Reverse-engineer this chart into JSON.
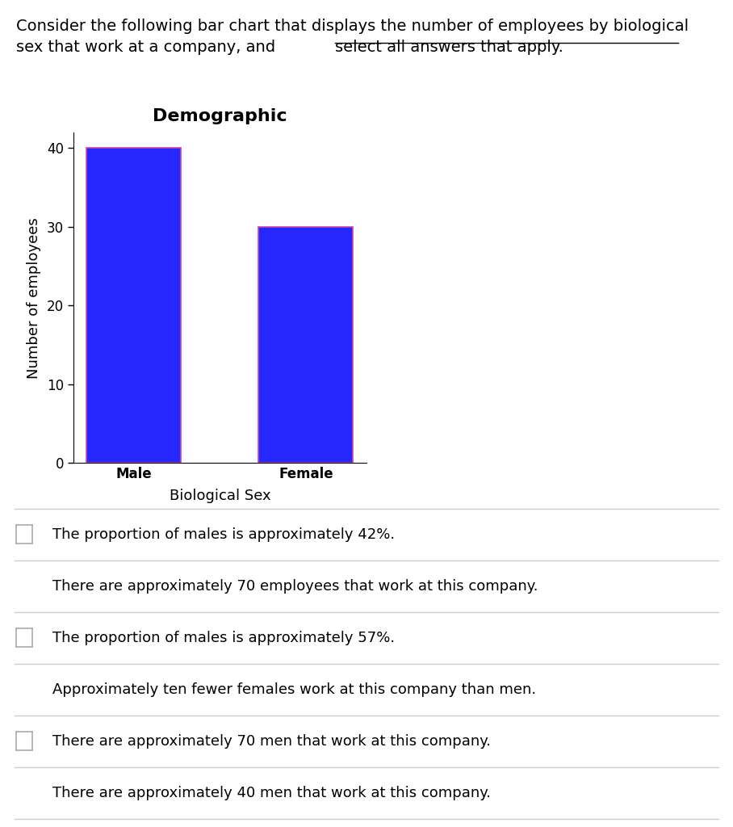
{
  "title": "Demographic",
  "categories": [
    "Male",
    "Female"
  ],
  "values": [
    40,
    30
  ],
  "bar_color": "#2626FF",
  "bar_edge_color": "#CC44AA",
  "bar_edge_width": 1.2,
  "xlabel": "Biological Sex",
  "ylabel": "Number of employees",
  "ylim": [
    0,
    42
  ],
  "yticks": [
    0,
    10,
    20,
    30,
    40
  ],
  "header_line1": "Consider the following bar chart that displays the number of employees by biological",
  "header_line2_normal": "sex that work at a company, and ",
  "header_line2_underline": "select all answers that apply.",
  "options": [
    {
      "text": "The proportion of males is approximately 42%.",
      "checked": false
    },
    {
      "text": "There are approximately 70 employees that work at this company.",
      "checked": true
    },
    {
      "text": "The proportion of males is approximately 57%.",
      "checked": false
    },
    {
      "text": "Approximately ten fewer females work at this company than men.",
      "checked": true
    },
    {
      "text": "There are approximately 70 men that work at this company.",
      "checked": false
    },
    {
      "text": "There are approximately 40 men that work at this company.",
      "checked": true
    }
  ],
  "checkbox_checked_color": "#1a6bbf",
  "checkbox_unchecked_color": "#ffffff",
  "checkbox_border_color": "#aaaaaa",
  "divider_color": "#cccccc",
  "background_color": "#ffffff",
  "title_fontsize": 16,
  "axis_label_fontsize": 13,
  "tick_fontsize": 12,
  "header_fontsize": 14,
  "option_fontsize": 13
}
